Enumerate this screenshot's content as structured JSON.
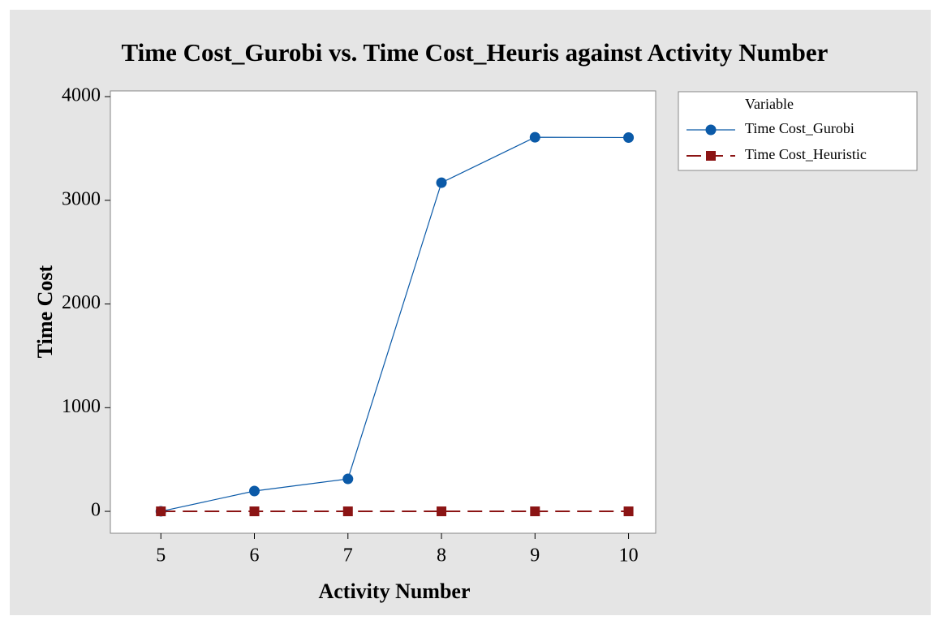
{
  "chart_data": {
    "type": "line",
    "title": "Time Cost_Gurobi vs. Time Cost_Heuris against Activity Number",
    "x_label": "Activity Number",
    "y_label": "Time Cost",
    "legend_title": "Variable",
    "x": [
      5,
      6,
      7,
      8,
      9,
      10
    ],
    "series": [
      {
        "name": "Time Cost_Gurobi",
        "color": "#0b5aa8",
        "marker": "circle",
        "dash": "solid",
        "values": [
          0,
          196,
          313,
          3170,
          3608,
          3605
        ]
      },
      {
        "name": "Time Cost_Heuristic",
        "color": "#8b1414",
        "marker": "square",
        "dash": "dashed",
        "values": [
          0,
          0,
          0,
          0,
          0,
          0
        ]
      }
    ],
    "xlim": [
      4.46,
      10.29
    ],
    "xticks": [
      5,
      6,
      7,
      8,
      9,
      10
    ],
    "ylim": [
      -211,
      4055
    ],
    "yticks": [
      0,
      1000,
      2000,
      3000,
      4000
    ],
    "legend_position": "upper right outside"
  }
}
